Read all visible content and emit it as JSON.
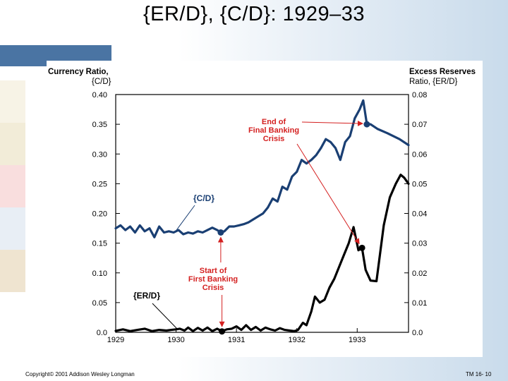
{
  "slide": {
    "title": "{ER/D}, {C/D}: 1929–33",
    "copyright": "Copyright© 2001 Addison Wesley Longman",
    "page_ref": "TM 16- 10"
  },
  "chart_data": {
    "type": "line",
    "left_axis_label_line1": "Currency Ratio,",
    "left_axis_label_line2": "{C/D}",
    "right_axis_label_line1": "Excess Reserves",
    "right_axis_label_line2": "Ratio, {ER/D}",
    "x_ticks": [
      "1929",
      "1930",
      "1931",
      "1932",
      "1933"
    ],
    "xlim": [
      1929,
      1933.85
    ],
    "ylim_left": [
      0,
      0.4
    ],
    "ylim_right": [
      0,
      0.08
    ],
    "left_ticks": [
      "0.0",
      "0.05",
      "0.10",
      "0.15",
      "0.20",
      "0.25",
      "0.30",
      "0.35",
      "0.40"
    ],
    "right_ticks": [
      "0.0",
      "0.01",
      "0.02",
      "0.03",
      "0.04",
      "0.05",
      "0.06",
      "0.07",
      "0.08"
    ],
    "series": [
      {
        "name": "{C/D}",
        "axis": "left",
        "color": "#1a3f73",
        "points": [
          [
            1929.0,
            0.175
          ],
          [
            1929.08,
            0.18
          ],
          [
            1929.16,
            0.172
          ],
          [
            1929.24,
            0.178
          ],
          [
            1929.32,
            0.168
          ],
          [
            1929.4,
            0.18
          ],
          [
            1929.48,
            0.17
          ],
          [
            1929.56,
            0.175
          ],
          [
            1929.64,
            0.16
          ],
          [
            1929.72,
            0.178
          ],
          [
            1929.8,
            0.168
          ],
          [
            1929.88,
            0.17
          ],
          [
            1929.96,
            0.168
          ],
          [
            1930.04,
            0.172
          ],
          [
            1930.12,
            0.165
          ],
          [
            1930.2,
            0.168
          ],
          [
            1930.28,
            0.166
          ],
          [
            1930.36,
            0.17
          ],
          [
            1930.44,
            0.168
          ],
          [
            1930.52,
            0.172
          ],
          [
            1930.6,
            0.176
          ],
          [
            1930.68,
            0.172
          ],
          [
            1930.74,
            0.168
          ],
          [
            1930.8,
            0.17
          ],
          [
            1930.88,
            0.178
          ],
          [
            1930.96,
            0.178
          ],
          [
            1931.04,
            0.18
          ],
          [
            1931.12,
            0.182
          ],
          [
            1931.2,
            0.185
          ],
          [
            1931.28,
            0.19
          ],
          [
            1931.36,
            0.195
          ],
          [
            1931.44,
            0.2
          ],
          [
            1931.52,
            0.21
          ],
          [
            1931.6,
            0.225
          ],
          [
            1931.68,
            0.22
          ],
          [
            1931.76,
            0.245
          ],
          [
            1931.84,
            0.24
          ],
          [
            1931.92,
            0.262
          ],
          [
            1932.0,
            0.27
          ],
          [
            1932.08,
            0.29
          ],
          [
            1932.16,
            0.284
          ],
          [
            1932.24,
            0.29
          ],
          [
            1932.32,
            0.298
          ],
          [
            1932.4,
            0.31
          ],
          [
            1932.48,
            0.325
          ],
          [
            1932.56,
            0.32
          ],
          [
            1932.64,
            0.31
          ],
          [
            1932.72,
            0.29
          ],
          [
            1932.8,
            0.32
          ],
          [
            1932.88,
            0.33
          ],
          [
            1932.96,
            0.36
          ],
          [
            1933.04,
            0.375
          ],
          [
            1933.1,
            0.39
          ],
          [
            1933.16,
            0.35
          ],
          [
            1933.22,
            0.35
          ],
          [
            1933.34,
            0.342
          ],
          [
            1933.5,
            0.335
          ],
          [
            1933.7,
            0.325
          ],
          [
            1933.85,
            0.315
          ]
        ]
      },
      {
        "name": "{ER/D}",
        "axis": "right",
        "color": "#000000",
        "points": [
          [
            1929.0,
            0.0005
          ],
          [
            1929.12,
            0.001
          ],
          [
            1929.24,
            0.0004
          ],
          [
            1929.36,
            0.0008
          ],
          [
            1929.48,
            0.0012
          ],
          [
            1929.6,
            0.0004
          ],
          [
            1929.72,
            0.0008
          ],
          [
            1929.84,
            0.0006
          ],
          [
            1929.92,
            0.0008
          ],
          [
            1930.0,
            0.001
          ],
          [
            1930.06,
            0.0012
          ],
          [
            1930.14,
            0.0006
          ],
          [
            1930.2,
            0.0016
          ],
          [
            1930.28,
            0.0004
          ],
          [
            1930.36,
            0.0015
          ],
          [
            1930.44,
            0.0006
          ],
          [
            1930.52,
            0.0016
          ],
          [
            1930.6,
            0.0004
          ],
          [
            1930.68,
            0.0012
          ],
          [
            1930.76,
            0.0003
          ],
          [
            1930.84,
            0.001
          ],
          [
            1930.92,
            0.0012
          ],
          [
            1931.0,
            0.002
          ],
          [
            1931.08,
            0.0008
          ],
          [
            1931.16,
            0.0024
          ],
          [
            1931.24,
            0.0008
          ],
          [
            1931.32,
            0.0018
          ],
          [
            1931.4,
            0.0006
          ],
          [
            1931.48,
            0.0016
          ],
          [
            1931.56,
            0.001
          ],
          [
            1931.64,
            0.0006
          ],
          [
            1931.72,
            0.0014
          ],
          [
            1931.8,
            0.0008
          ],
          [
            1931.88,
            0.0006
          ],
          [
            1931.96,
            0.0004
          ],
          [
            1932.02,
            0.0008
          ],
          [
            1932.1,
            0.0032
          ],
          [
            1932.16,
            0.0024
          ],
          [
            1932.24,
            0.007
          ],
          [
            1932.3,
            0.012
          ],
          [
            1932.38,
            0.01
          ],
          [
            1932.46,
            0.011
          ],
          [
            1932.54,
            0.015
          ],
          [
            1932.62,
            0.018
          ],
          [
            1932.7,
            0.022
          ],
          [
            1932.78,
            0.026
          ],
          [
            1932.86,
            0.03
          ],
          [
            1932.94,
            0.0354
          ],
          [
            1933.02,
            0.0276
          ],
          [
            1933.08,
            0.0284
          ],
          [
            1933.14,
            0.021
          ],
          [
            1933.22,
            0.0174
          ],
          [
            1933.32,
            0.0172
          ],
          [
            1933.44,
            0.036
          ],
          [
            1933.54,
            0.0454
          ],
          [
            1933.64,
            0.05
          ],
          [
            1933.72,
            0.053
          ],
          [
            1933.78,
            0.052
          ],
          [
            1933.85,
            0.05
          ]
        ]
      }
    ],
    "markers": [
      {
        "series": "{C/D}",
        "x": 1930.74,
        "y": 0.168
      },
      {
        "series": "{C/D}",
        "x": 1933.16,
        "y": 0.35
      },
      {
        "series": "{ER/D}",
        "x": 1930.76,
        "y": 0.0003
      },
      {
        "series": "{ER/D}",
        "x": 1933.08,
        "y": 0.0284
      }
    ],
    "annotations": {
      "cd_label": "{C/D}",
      "erd_label": "{ER/D}",
      "final_crisis": [
        "End of",
        "Final Banking",
        "Crisis"
      ],
      "first_crisis": [
        "Start of",
        "First Banking",
        "Crisis"
      ],
      "annotation_color": "#d42020"
    }
  }
}
